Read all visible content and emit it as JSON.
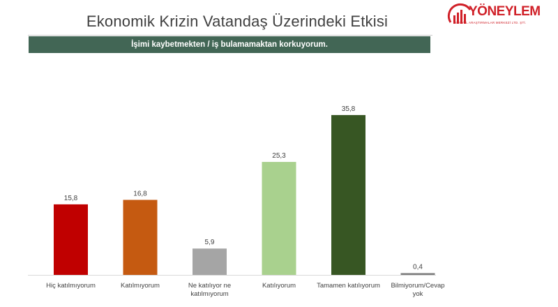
{
  "header": {
    "title": "Ekonomik Krizin Vatandaş Üzerindeki Etkisi",
    "subtitle": "İşimi kaybetmekten / iş bulamamaktan korkuyorum."
  },
  "logo": {
    "name": "YÖNEYLEM",
    "tagline": "SOSYAL ARAŞTIRMALAR MERKEZİ LTD. ŞTİ.",
    "color": "#d02028"
  },
  "chart_data": {
    "type": "bar",
    "categories": [
      "Hiç katılmıyorum",
      "Katılmıyorum",
      "Ne katılıyor ne katılmıyorum",
      "Katılıyorum",
      "Tamamen katılıyorum",
      "Bilmiyorum/Cevap yok"
    ],
    "category_lines": [
      [
        "Hiç katılmıyorum"
      ],
      [
        "Katılmıyorum"
      ],
      [
        "Ne katılıyor ne",
        "katılmıyorum"
      ],
      [
        "Katılıyorum"
      ],
      [
        "Tamamen katılıyorum"
      ],
      [
        "Bilmiyorum/Cevap",
        "yok"
      ]
    ],
    "values": [
      15.8,
      16.8,
      5.9,
      25.3,
      35.8,
      0.4
    ],
    "value_labels": [
      "15,8",
      "16,8",
      "5,9",
      "25,3",
      "35,8",
      "0,4"
    ],
    "colors": [
      "#c00000",
      "#c55a11",
      "#a5a5a5",
      "#a9d18e",
      "#375623",
      "#7f7f7f"
    ],
    "ylim": [
      0,
      40
    ],
    "grid": false,
    "legend": "none"
  }
}
